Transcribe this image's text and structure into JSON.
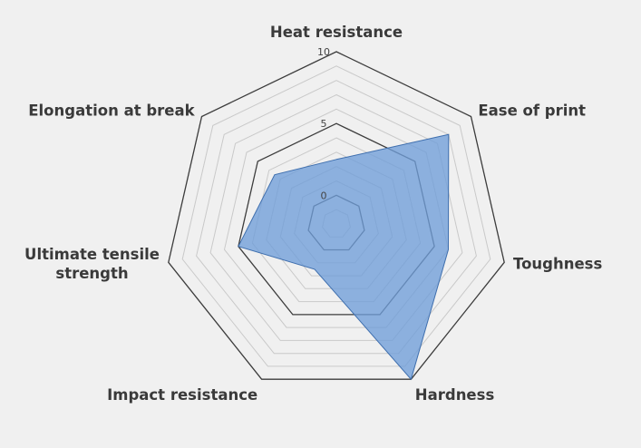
{
  "chart_data": {
    "type": "radar",
    "axes": [
      "Heat resistance",
      "Ease of print",
      "Toughness",
      "Hardness",
      "Impact resistance",
      "Ultimate tensile strength",
      "Elongation at break"
    ],
    "axis_label_lines": [
      [
        "Heat resistance"
      ],
      [
        "Ease of print"
      ],
      [
        "Toughness"
      ],
      [
        "Hardness"
      ],
      [
        "Impact resistance"
      ],
      [
        "Ultimate tensile",
        "strength"
      ],
      [
        "Elongation at break"
      ]
    ],
    "rlim": [
      -2,
      10
    ],
    "ticks": [
      "0",
      "5",
      "10"
    ],
    "tick_values": [
      0,
      5,
      10
    ],
    "series": [
      {
        "values": [
          2.5,
          8,
          6,
          10,
          1.5,
          5,
          3.5
        ],
        "color": "#6f9ed9"
      }
    ]
  }
}
